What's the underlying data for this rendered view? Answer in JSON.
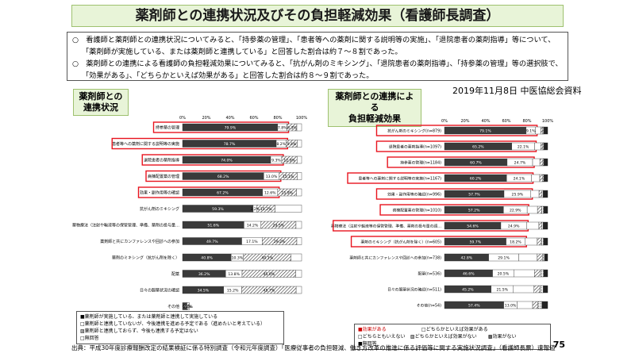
{
  "title": "薬剤師との連携状況及びその負担軽減効果（看護師長調査）",
  "summary": [
    "○　看護師と薬剤師との連携状況についてみると、「持参薬の管理」、「患者等への薬剤に関する説明等の実施」、「退院患者の薬剤指導」等について、「薬剤師が実施している、または薬剤師と連携している」と回答した割合は約７～８割であった。",
    "○　薬剤師との連携による看護師の負担軽減効果についてみると、「抗がん剤のミキシング」、「退院患者の薬剤指導」、「持参薬の管理」等の選択肢で、「効果がある」、「どちらかといえば効果がある」と回答した割合は約８～９割であった。"
  ],
  "source_note": "2019年11月8日 中医協総会資料",
  "left_label": [
    "薬剤師との",
    "連携状況"
  ],
  "right_label": [
    "薬剤師との連携による",
    "負担軽減効果"
  ],
  "footer": "出典：平成30年度診療報酬改定の結果検証に係る特別調査（令和元年度調査）「医療従事者の負担軽減、働き方改革の推進に係る評価等に関する実施状況調査」（看護師長票）速報値",
  "page_number": "75",
  "left_legend": [
    "■薬剤師が実施している、または薬剤師と連携して実施している",
    "□薬剤師と連携していないが、今後連携を進める予定である（進めたいと考えている）",
    "▨薬剤師と連携しておらず、今後も連携する予定はない",
    "□無回答"
  ],
  "right_legend": [
    "■効果がある",
    "□どちらかといえば効果がある",
    "□どちらともいえない",
    "▨どちらかといえば効果がない",
    "▩効果がない",
    "■無回答"
  ],
  "colors": {
    "dark": "#3a3a3a",
    "highlight": "#e8141e",
    "green_bg": "#e8f4d8"
  },
  "chart_data": [
    {
      "type": "bar",
      "orientation": "horizontal-stacked",
      "xlim": [
        0,
        100
      ],
      "ticks": [
        "0%",
        "20%",
        "40%",
        "60%",
        "80%",
        "100%"
      ],
      "categories": [
        "持参薬の管理",
        "患者等への薬剤に関する説明等の実施",
        "退院患者の薬剤指導",
        "病棟配置薬の管理",
        "効果・副作用等の確認",
        "抗がん剤のミキシング",
        "薬物療法（注射や輸液等の保管管理、準備、薬剤の投与量の調整等）",
        "薬剤師と共にカンファレンスや回診への参加",
        "薬剤のミキシング（抗がん剤を除く）",
        "配薬",
        "日々の服薬状況の確認",
        "その他"
      ],
      "highlighted": [
        true,
        true,
        true,
        true,
        true,
        false,
        false,
        false,
        false,
        false,
        false,
        false
      ],
      "labels": [
        [
          "79.9%",
          "7.8%",
          "8.3%"
        ],
        [
          "78.7%",
          "8.2%",
          "9.4%"
        ],
        [
          "74.0%",
          "9.3%",
          "12.9%"
        ],
        [
          "68.2%",
          "13.0%",
          "15.1%"
        ],
        [
          "67.2%",
          "12.6%",
          "15.9%"
        ],
        [
          "59.3%",
          "3.2%",
          "15.2%"
        ],
        [
          "51.6%",
          "14.2%",
          "29.5%"
        ],
        [
          "49.7%",
          "17.1%",
          "29.2%"
        ],
        [
          "40.8%",
          "10.3%",
          "40.1%"
        ],
        [
          "36.2%",
          "13.8%",
          "45.0%"
        ],
        [
          "34.5%",
          "15.2%",
          "45.7%"
        ],
        [
          "3.6%",
          "0.1%",
          "2.0%"
        ]
      ],
      "values": [
        [
          79.9,
          7.8,
          8.3,
          4.0
        ],
        [
          78.7,
          8.2,
          9.4,
          3.7
        ],
        [
          74.0,
          9.3,
          12.9,
          3.8
        ],
        [
          68.2,
          13.0,
          15.1,
          3.7
        ],
        [
          67.2,
          12.6,
          15.9,
          4.3
        ],
        [
          59.3,
          3.2,
          15.2,
          22.3
        ],
        [
          51.6,
          14.2,
          29.5,
          4.7
        ],
        [
          49.7,
          17.1,
          29.2,
          4.0
        ],
        [
          40.8,
          10.3,
          40.1,
          8.8
        ],
        [
          36.2,
          13.8,
          45.0,
          5.0
        ],
        [
          34.5,
          15.2,
          45.7,
          4.6
        ],
        [
          3.6,
          0.1,
          2.0,
          0
        ]
      ]
    },
    {
      "type": "bar",
      "orientation": "horizontal-stacked",
      "xlim": [
        0,
        100
      ],
      "ticks": [
        "0%",
        "20%",
        "40%",
        "60%",
        "80%",
        "100%"
      ],
      "categories": [
        "抗がん剤のミキシング(n=879)",
        "退院患者の薬剤指導(n=1097)",
        "持参薬の管理(n=1184)",
        "患者等への薬剤に関する説明等の実施(n=1167)",
        "効果・副作用等の確認(n=996)",
        "病棟配置薬の管理(n=1010)",
        "薬物療法（注射や輸液等の保管管理、準備、薬剤の投与量の調整等）(n=764)",
        "薬剤のミキシング（抗がん剤を除く）(n=605)",
        "薬剤師と共にカンファレンスや回診への参加(n=738)",
        "配薬(n=536)",
        "日々の服薬状況の確認(n=511)",
        "その他(n=54)"
      ],
      "highlighted": [
        true,
        true,
        true,
        true,
        true,
        true,
        true,
        true,
        false,
        false,
        false,
        false
      ],
      "labels": [
        [
          "79.1%",
          "9.1%"
        ],
        [
          "65.2%",
          "22.1%"
        ],
        [
          "60.7%",
          "24.7%"
        ],
        [
          "60.2%",
          "24.1%"
        ],
        [
          "57.7%",
          "25.9%"
        ],
        [
          "57.2%",
          "22.9%"
        ],
        [
          "54.6%",
          "24.9%"
        ],
        [
          "59.7%",
          "18.2%"
        ],
        [
          "42.8%",
          "29.1%"
        ],
        [
          "46.6%",
          "20.5%"
        ],
        [
          "45.2%",
          "21.5%"
        ],
        [
          "57.4%",
          "13.0%"
        ]
      ],
      "values": [
        [
          79.1,
          9.1,
          5,
          2,
          1,
          3.8
        ],
        [
          65.2,
          22.1,
          6,
          2,
          1,
          3.7
        ],
        [
          60.7,
          24.7,
          7,
          3,
          1,
          3.6
        ],
        [
          60.2,
          24.1,
          8,
          3,
          1,
          3.7
        ],
        [
          57.7,
          25.9,
          8,
          3,
          1,
          4.4
        ],
        [
          57.2,
          22.9,
          10,
          4,
          2,
          3.9
        ],
        [
          54.6,
          24.9,
          12,
          3,
          1,
          4.5
        ],
        [
          59.7,
          18.2,
          12,
          4,
          2,
          4.1
        ],
        [
          42.8,
          29.1,
          18,
          5,
          2,
          3.1
        ],
        [
          46.6,
          20.5,
          20,
          6,
          3,
          3.9
        ],
        [
          45.2,
          21.5,
          20,
          6,
          3,
          4.3
        ],
        [
          57.4,
          13.0,
          15,
          5,
          4,
          5.6
        ]
      ]
    }
  ]
}
